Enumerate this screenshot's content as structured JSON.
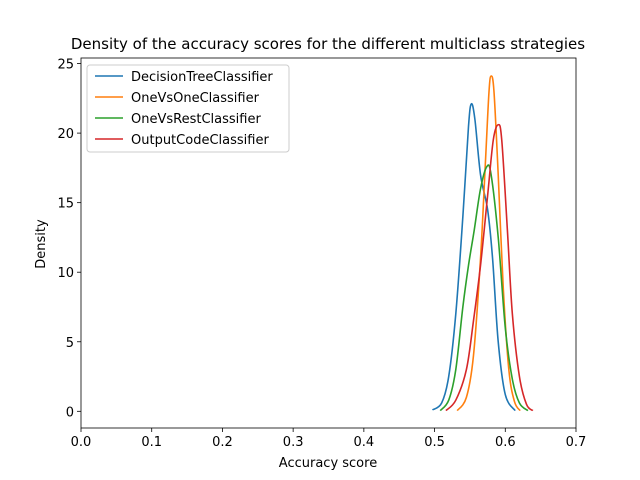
{
  "chart_data": {
    "type": "line",
    "title": "Density of the accuracy scores for the different multiclass strategies",
    "xlabel": "Accuracy score",
    "ylabel": "Density",
    "xlim": [
      0.0,
      0.7
    ],
    "ylim": [
      -1.2,
      25.4
    ],
    "xticks": [
      0.0,
      0.1,
      0.2,
      0.3,
      0.4,
      0.5,
      0.6,
      0.7
    ],
    "xtick_labels": [
      "0.0",
      "0.1",
      "0.2",
      "0.3",
      "0.4",
      "0.5",
      "0.6",
      "0.7"
    ],
    "yticks": [
      0,
      5,
      10,
      15,
      20,
      25
    ],
    "ytick_labels": [
      "0",
      "5",
      "10",
      "15",
      "20",
      "25"
    ],
    "grid": false,
    "legend_position": "top-left",
    "series": [
      {
        "name": "DecisionTreeClassifier",
        "color": "#1f77b4",
        "x": [
          0.497,
          0.51,
          0.52,
          0.53,
          0.54,
          0.548,
          0.552,
          0.557,
          0.565,
          0.575,
          0.582,
          0.59,
          0.6,
          0.614
        ],
        "y": [
          0.1,
          0.6,
          2.5,
          7,
          14,
          20.5,
          22.1,
          21,
          17,
          14.5,
          11,
          5,
          1.2,
          0.05
        ]
      },
      {
        "name": "OneVsOneClassifier",
        "color": "#ff7f0e",
        "x": [
          0.532,
          0.545,
          0.555,
          0.565,
          0.572,
          0.577,
          0.58,
          0.584,
          0.59,
          0.597,
          0.605,
          0.613,
          0.621
        ],
        "y": [
          0.05,
          1,
          4,
          11,
          18,
          23,
          24.1,
          23,
          17,
          9,
          3,
          0.7,
          0.05
        ]
      },
      {
        "name": "OneVsRestClassifier",
        "color": "#2ca02c",
        "x": [
          0.508,
          0.52,
          0.53,
          0.54,
          0.548,
          0.556,
          0.565,
          0.574,
          0.58,
          0.59,
          0.6,
          0.61,
          0.62,
          0.632
        ],
        "y": [
          0.05,
          0.8,
          3,
          7.5,
          10.5,
          13,
          16,
          17.6,
          17,
          12.5,
          6,
          2.3,
          0.6,
          0.05
        ]
      },
      {
        "name": "OutputCodeClassifier",
        "color": "#d62728",
        "x": [
          0.516,
          0.53,
          0.545,
          0.555,
          0.565,
          0.575,
          0.583,
          0.59,
          0.595,
          0.603,
          0.61,
          0.62,
          0.63,
          0.639
        ],
        "y": [
          0.05,
          0.8,
          3,
          6.5,
          10.5,
          15.5,
          19.5,
          20.6,
          19.5,
          13,
          7,
          2.5,
          0.5,
          0.05
        ]
      }
    ]
  }
}
